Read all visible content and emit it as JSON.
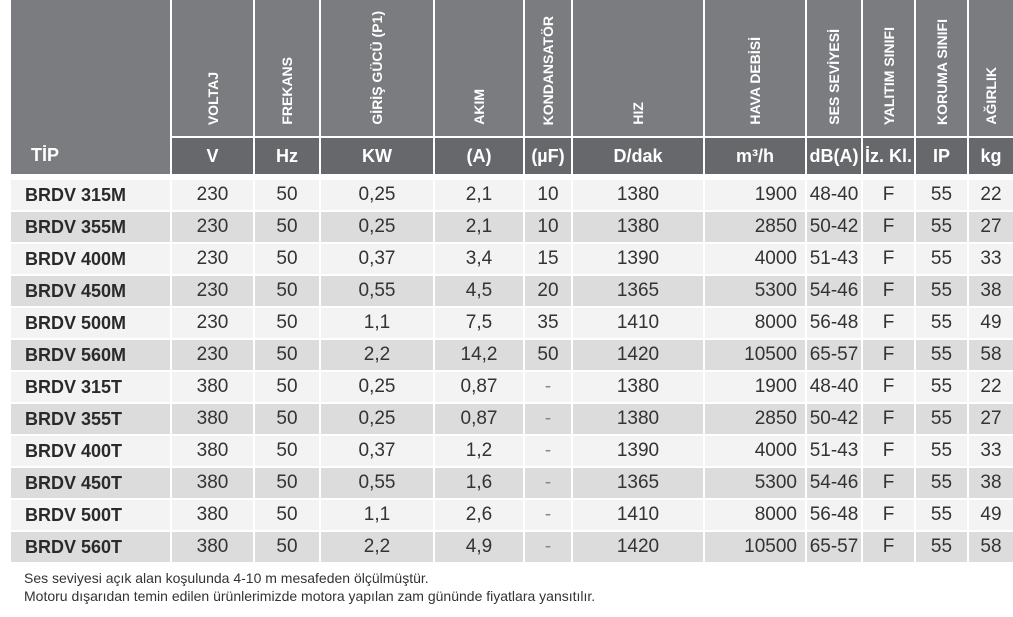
{
  "columns": [
    {
      "name": "",
      "unit": "TİP"
    },
    {
      "name": "VOLTAJ",
      "unit": "V"
    },
    {
      "name": "FREKANS",
      "unit": "Hz"
    },
    {
      "name": "GİRİŞ GÜCÜ (P1)",
      "unit": "KW"
    },
    {
      "name": "AKIM",
      "unit": "(A)"
    },
    {
      "name": "KONDANSATÖR",
      "unit": "(µF)"
    },
    {
      "name": "HIZ",
      "unit": "D/dak"
    },
    {
      "name": "HAVA DEBİSİ",
      "unit": "m³/h"
    },
    {
      "name": "SES SEVİYESİ",
      "unit": "dB(A)"
    },
    {
      "name": "YALITIM SINIFI",
      "unit": "İz. Kl."
    },
    {
      "name": "KORUMA SINIFI",
      "unit": "IP"
    },
    {
      "name": "AĞIRLIK",
      "unit": "kg"
    }
  ],
  "rows": [
    [
      "BRDV 315M",
      "230",
      "50",
      "0,25",
      "2,1",
      "10",
      "1380",
      "1900",
      "48-40",
      "F",
      "55",
      "22"
    ],
    [
      "BRDV 355M",
      "230",
      "50",
      "0,25",
      "2,1",
      "10",
      "1380",
      "2850",
      "50-42",
      "F",
      "55",
      "27"
    ],
    [
      "BRDV 400M",
      "230",
      "50",
      "0,37",
      "3,4",
      "15",
      "1390",
      "4000",
      "51-43",
      "F",
      "55",
      "33"
    ],
    [
      "BRDV 450M",
      "230",
      "50",
      "0,55",
      "4,5",
      "20",
      "1365",
      "5300",
      "54-46",
      "F",
      "55",
      "38"
    ],
    [
      "BRDV 500M",
      "230",
      "50",
      "1,1",
      "7,5",
      "35",
      "1410",
      "8000",
      "56-48",
      "F",
      "55",
      "49"
    ],
    [
      "BRDV 560M",
      "230",
      "50",
      "2,2",
      "14,2",
      "50",
      "1420",
      "10500",
      "65-57",
      "F",
      "55",
      "58"
    ],
    [
      "BRDV 315T",
      "380",
      "50",
      "0,25",
      "0,87",
      "-",
      "1380",
      "1900",
      "48-40",
      "F",
      "55",
      "22"
    ],
    [
      "BRDV 355T",
      "380",
      "50",
      "0,25",
      "0,87",
      "-",
      "1380",
      "2850",
      "50-42",
      "F",
      "55",
      "27"
    ],
    [
      "BRDV 400T",
      "380",
      "50",
      "0,37",
      "1,2",
      "-",
      "1390",
      "4000",
      "51-43",
      "F",
      "55",
      "33"
    ],
    [
      "BRDV 450T",
      "380",
      "50",
      "0,55",
      "1,6",
      "-",
      "1365",
      "5300",
      "54-46",
      "F",
      "55",
      "38"
    ],
    [
      "BRDV 500T",
      "380",
      "50",
      "1,1",
      "2,6",
      "-",
      "1410",
      "8000",
      "56-48",
      "F",
      "55",
      "49"
    ],
    [
      "BRDV 560T",
      "380",
      "50",
      "2,2",
      "4,9",
      "-",
      "1420",
      "10500",
      "65-57",
      "F",
      "55",
      "58"
    ]
  ],
  "notes": [
    "Ses seviyesi açık alan koşulunda 4-10 m mesafeden ölçülmüştür.",
    "Motoru dışarıdan temin edilen ürünlerimizde motora yapılan zam gününde fiyatlara yansıtılır."
  ],
  "colors": {
    "header_top": "#7a7c7f",
    "header_units": "#66686b",
    "row_light": "#f3f3f3",
    "row_dark": "#dcdcdc"
  }
}
